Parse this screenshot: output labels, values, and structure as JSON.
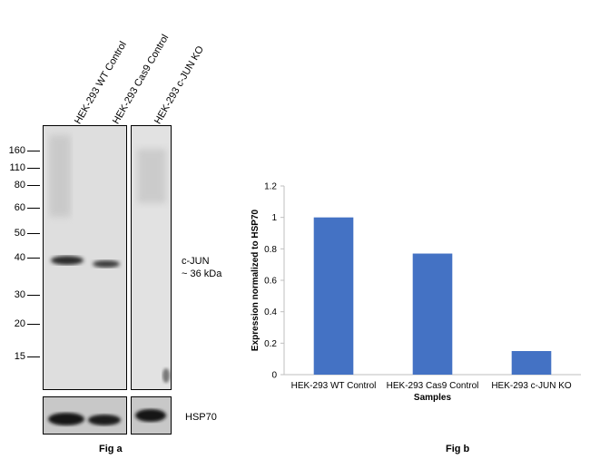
{
  "fig_a": {
    "lanes": [
      "HEK-293 WT Control",
      "HEK-293 Cas9 Control",
      "HEK-293 c-JUN KO"
    ],
    "mw_markers": [
      "160",
      "110",
      "80",
      "60",
      "50",
      "40",
      "30",
      "20",
      "15"
    ],
    "band_label_line1": "c-JUN",
    "band_label_line2": "~ 36 kDa",
    "loading_label": "HSP70",
    "caption": "Fig a",
    "colors": {
      "membrane": "#dcdcdc",
      "band": "#2a2a2a",
      "loading_bg": "#c8c8c8"
    }
  },
  "fig_b": {
    "caption": "Fig b"
  },
  "chart_data": {
    "type": "bar",
    "categories": [
      "HEK-293 WT Control",
      "HEK-293 Cas9 Control",
      "HEK-293 c-JUN KO"
    ],
    "values": [
      1.0,
      0.77,
      0.15
    ],
    "title": "",
    "xlabel": "Samples",
    "ylabel": "Expression normalized to HSP70",
    "ylim": [
      0,
      1.2
    ],
    "yticks": [
      "0",
      "0.2",
      "0.4",
      "0.6",
      "0.8",
      "1",
      "1.2"
    ],
    "grid": false,
    "bar_color": "#4472c4"
  }
}
